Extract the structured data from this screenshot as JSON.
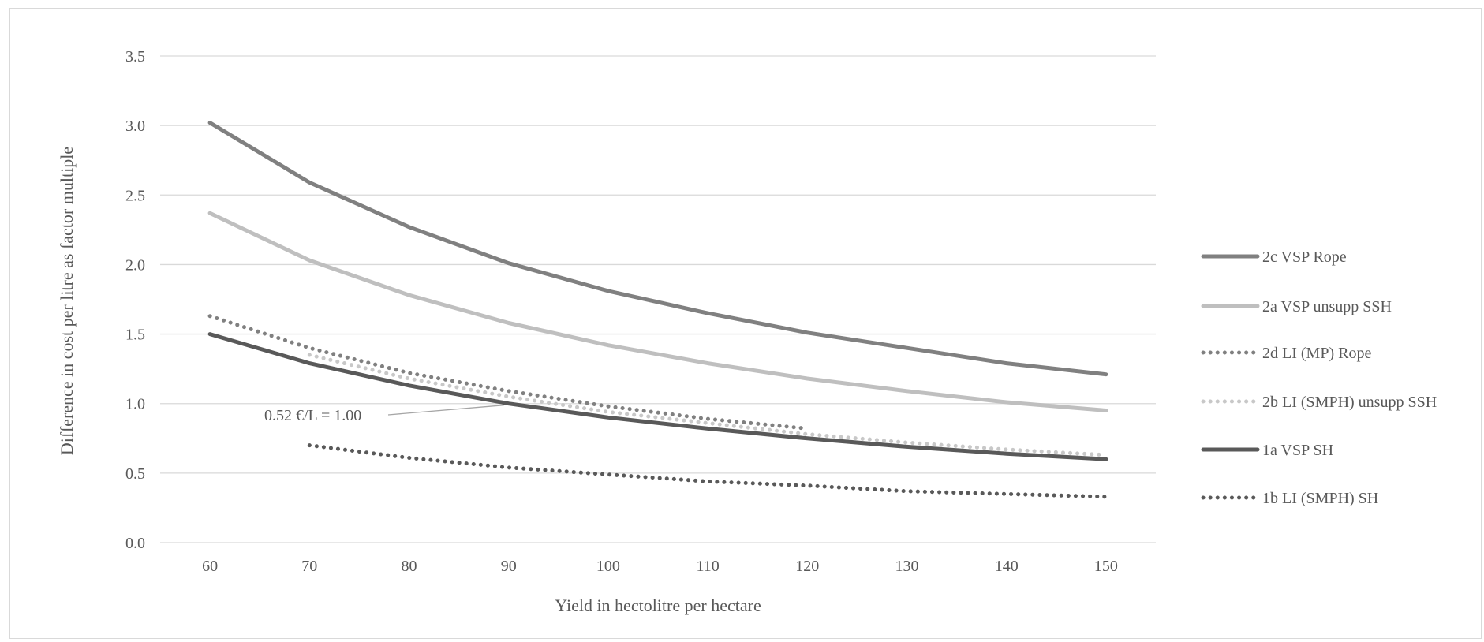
{
  "chart_data": {
    "type": "line",
    "title": "",
    "xlabel": "Yield in hectolitre per hectare",
    "ylabel": "Difference in cost per litre as factor multiple",
    "x": [
      60,
      70,
      80,
      90,
      100,
      110,
      120,
      130,
      140,
      150
    ],
    "x_ticks": [
      "60",
      "70",
      "80",
      "90",
      "100",
      "110",
      "120",
      "130",
      "140",
      "150"
    ],
    "y_ticks": [
      "0.0",
      "0.5",
      "1.0",
      "1.5",
      "2.0",
      "2.5",
      "3.0",
      "3.5"
    ],
    "xlim": [
      55,
      155
    ],
    "ylim": [
      0,
      3.5
    ],
    "grid": "horizontal",
    "legend_position": "right",
    "annotation": {
      "text": "0.52 €/L = 1.00",
      "x": 90,
      "y": 1.0
    },
    "series": [
      {
        "name": "2c VSP Rope",
        "color": "#808080",
        "style": "solid",
        "x": [
          60,
          70,
          80,
          90,
          100,
          110,
          120,
          130,
          140,
          150
        ],
        "values": [
          3.02,
          2.59,
          2.27,
          2.01,
          1.81,
          1.65,
          1.51,
          1.4,
          1.29,
          1.21
        ]
      },
      {
        "name": "2a VSP unsupp SSH",
        "color": "#bfbfbf",
        "style": "solid",
        "x": [
          60,
          70,
          80,
          90,
          100,
          110,
          120,
          130,
          140,
          150
        ],
        "values": [
          2.37,
          2.03,
          1.78,
          1.58,
          1.42,
          1.29,
          1.18,
          1.09,
          1.01,
          0.95
        ]
      },
      {
        "name": "2d LI (MP) Rope",
        "color": "#808080",
        "style": "dotted",
        "x": [
          60,
          70,
          80,
          90,
          100,
          110,
          120
        ],
        "values": [
          1.63,
          1.4,
          1.22,
          1.09,
          0.98,
          0.89,
          0.82
        ]
      },
      {
        "name": "2b LI (SMPH) unsupp SSH",
        "color": "#c8c8c8",
        "style": "dotted",
        "x": [
          70,
          80,
          90,
          100,
          110,
          120,
          130,
          140,
          150
        ],
        "values": [
          1.35,
          1.18,
          1.05,
          0.94,
          0.86,
          0.78,
          0.72,
          0.67,
          0.63
        ]
      },
      {
        "name": "1a VSP SH",
        "color": "#595959",
        "style": "solid",
        "x": [
          60,
          70,
          80,
          90,
          100,
          110,
          120,
          130,
          140,
          150
        ],
        "values": [
          1.5,
          1.29,
          1.13,
          1.0,
          0.9,
          0.82,
          0.75,
          0.69,
          0.64,
          0.6
        ]
      },
      {
        "name": "1b LI (SMPH) SH",
        "color": "#595959",
        "style": "dotted",
        "x": [
          70,
          80,
          90,
          100,
          110,
          120,
          130,
          140,
          150
        ],
        "values": [
          0.7,
          0.61,
          0.54,
          0.49,
          0.44,
          0.41,
          0.37,
          0.35,
          0.33
        ]
      }
    ]
  }
}
